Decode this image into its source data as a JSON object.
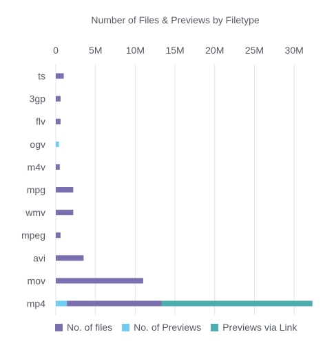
{
  "chart_data": {
    "type": "bar",
    "orientation": "horizontal",
    "stacked": true,
    "title": "Number of Files & Previews by Filetype",
    "categories": [
      "ts",
      "3gp",
      "flv",
      "ogv",
      "m4v",
      "mpg",
      "wmv",
      "mpeg",
      "avi",
      "mov",
      "mp4"
    ],
    "x_ticks": [
      "0",
      "5M",
      "10M",
      "15M",
      "20M",
      "25M",
      "30M"
    ],
    "x_tick_values": [
      0,
      5000000,
      10000000,
      15000000,
      20000000,
      25000000,
      30000000
    ],
    "xlim": [
      0,
      32500000
    ],
    "grid": true,
    "legend_position": "bottom",
    "series": [
      {
        "name": "No. of Previews",
        "color": "#6fcdf4",
        "values": [
          0,
          0,
          0,
          400000,
          0,
          0,
          0,
          0,
          0,
          0,
          1400000
        ]
      },
      {
        "name": "No. of files",
        "color": "#7b6fb0",
        "values": [
          1000000,
          600000,
          600000,
          0,
          500000,
          2200000,
          2200000,
          600000,
          3500000,
          11000000,
          11900000
        ]
      },
      {
        "name": "Previews via Link",
        "color": "#4aafae",
        "values": [
          0,
          0,
          0,
          0,
          0,
          0,
          0,
          0,
          0,
          0,
          19000000
        ]
      }
    ]
  },
  "legend": [
    {
      "label": "No. of files",
      "color": "#7b6fb0"
    },
    {
      "label": "No. of Previews",
      "color": "#6fcdf4"
    },
    {
      "label": "Previews via Link",
      "color": "#4aafae"
    }
  ]
}
